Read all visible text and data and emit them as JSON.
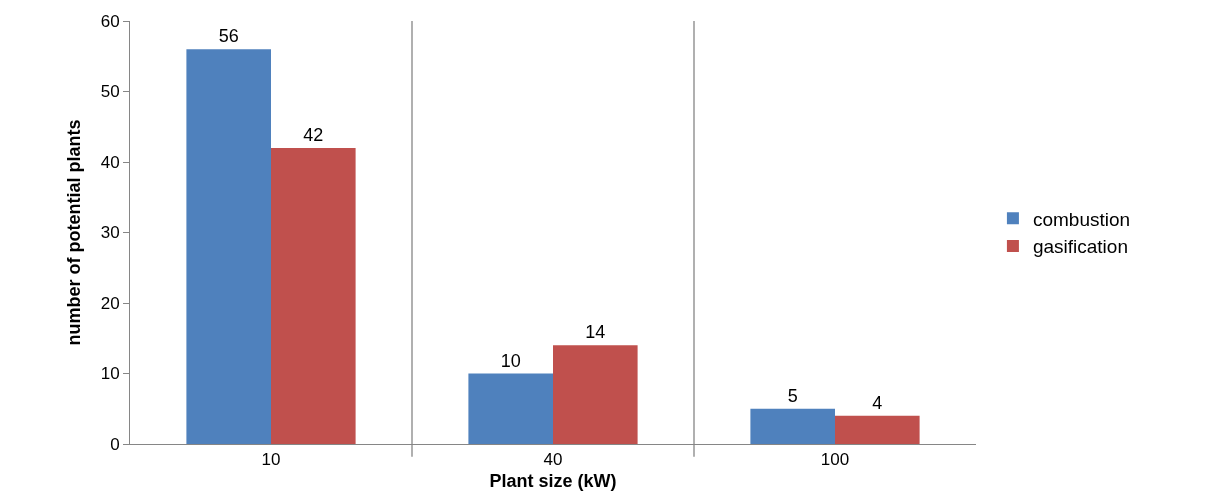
{
  "chart_data": {
    "type": "bar",
    "xlabel": "Plant size (kW)",
    "ylabel": "number of potential plants",
    "categories": [
      "10",
      "40",
      "100"
    ],
    "series": [
      {
        "name": "combustion",
        "color": "#4f81bd",
        "values": [
          56,
          10,
          5
        ]
      },
      {
        "name": "gasification",
        "color": "#c0504d",
        "values": [
          42,
          14,
          4
        ]
      }
    ],
    "ylim": [
      0,
      60
    ],
    "yticks": [
      0,
      10,
      20,
      30,
      40,
      50,
      60
    ],
    "grid": "x",
    "legend": "right",
    "data_labels": true
  }
}
